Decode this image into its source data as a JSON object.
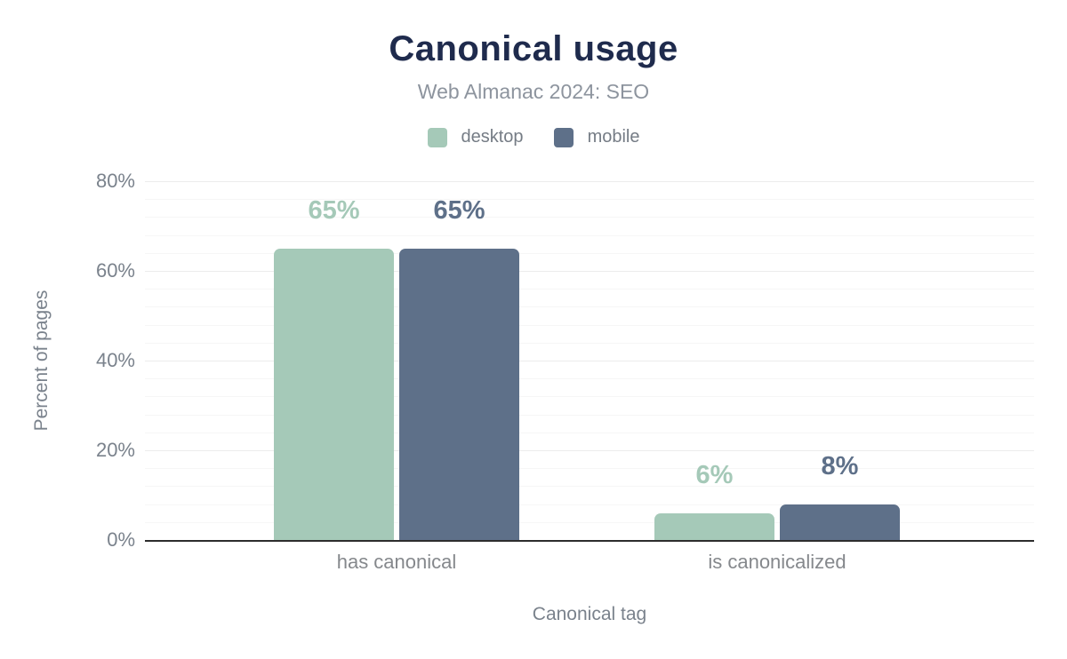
{
  "chart_data": {
    "type": "bar",
    "title": "Canonical usage",
    "subtitle": "Web Almanac 2024: SEO",
    "categories": [
      "has canonical",
      "is canonicalized"
    ],
    "series": [
      {
        "name": "desktop",
        "color": "#a5c9b8",
        "values": [
          65,
          6
        ]
      },
      {
        "name": "mobile",
        "color": "#5e7089",
        "values": [
          65,
          8
        ]
      }
    ],
    "data_labels": [
      [
        "65%",
        "65%"
      ],
      [
        "6%",
        "8%"
      ]
    ],
    "xlabel": "Canonical tag",
    "ylabel": "Percent of pages",
    "ylim": [
      0,
      80
    ],
    "yticks": [
      "0%",
      "20%",
      "40%",
      "60%",
      "80%"
    ],
    "ytick_values": [
      0,
      20,
      40,
      60,
      80
    ],
    "major_grid_step": 20,
    "minor_grid_step": 4,
    "grid": true,
    "legend_position": "top"
  },
  "colors": {
    "title": "#1f2b4d",
    "subtitle": "#8d949e",
    "axis_text": "#7a828c",
    "category_text": "#85888c",
    "major_grid": "#ececec",
    "minor_grid": "#f6f6f6",
    "axis_line": "#2d2d2d",
    "background": "#ffffff"
  }
}
